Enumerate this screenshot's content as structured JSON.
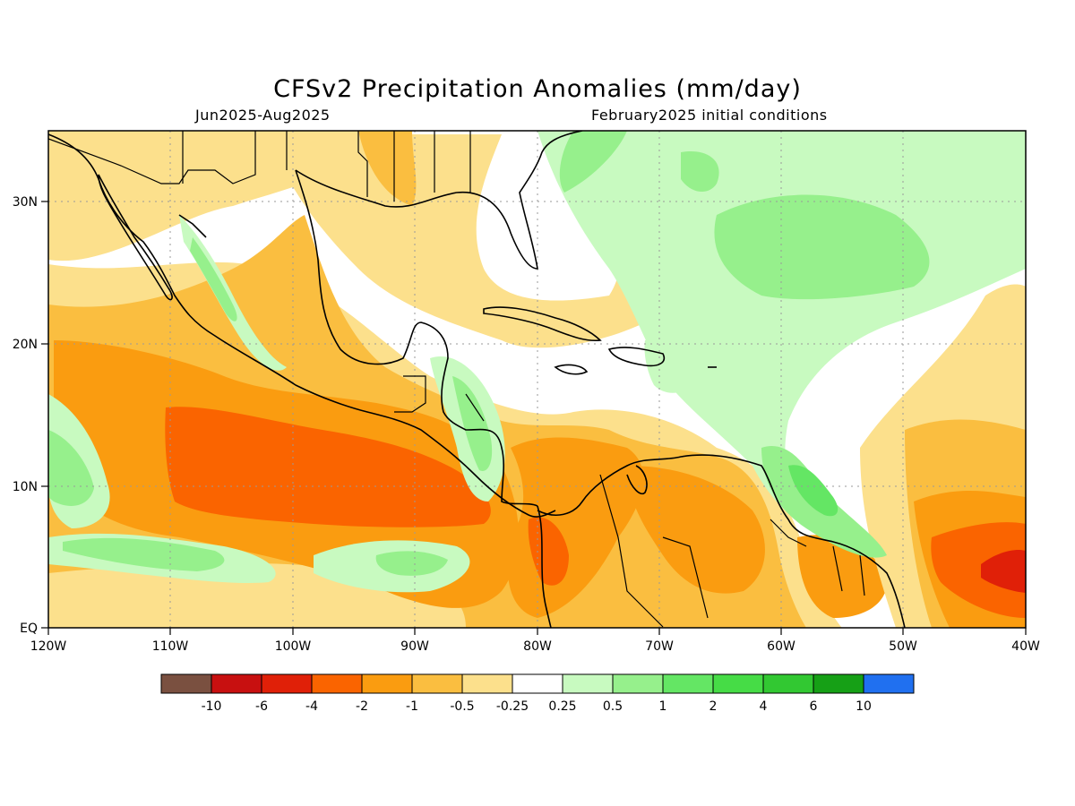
{
  "header": {
    "title": "CFSv2 Precipitation Anomalies (mm/day)",
    "period": "Jun2025-Aug2025",
    "init": "February2025 initial conditions"
  },
  "map": {
    "lon_labels": [
      "120W",
      "110W",
      "100W",
      "90W",
      "80W",
      "70W",
      "60W",
      "50W",
      "40W"
    ],
    "lat_labels": [
      "30N",
      "20N",
      "10N",
      "EQ"
    ],
    "lon_range": [
      -120,
      -40
    ],
    "lat_range": [
      0,
      35
    ],
    "gridlines": "dotted",
    "features": [
      "coastlines",
      "country-borders",
      "us-state-borders"
    ]
  },
  "colorbar": {
    "labels": [
      "-10",
      "-6",
      "-4",
      "-2",
      "-1",
      "-0.5",
      "-0.25",
      "0.25",
      "0.5",
      "1",
      "2",
      "4",
      "6",
      "10"
    ],
    "colors": [
      "#7a5040",
      "#c81010",
      "#e02008",
      "#fa6400",
      "#fa9c10",
      "#fabe40",
      "#fce08c",
      "#ffffff",
      "#c8fac0",
      "#96f08c",
      "#64e664",
      "#46dc46",
      "#32c832",
      "#16a016",
      "#2070f0"
    ]
  },
  "anomaly_colors": {
    "dry_strong": "#fa6400",
    "dry_moderate": "#fa9c10",
    "dry_light": "#fabe40",
    "dry_weak": "#fce08c",
    "wet_weak": "#c8fac0",
    "wet_light": "#96f08c",
    "wet_moderate": "#64e664",
    "dry_extreme": "#e02008"
  }
}
